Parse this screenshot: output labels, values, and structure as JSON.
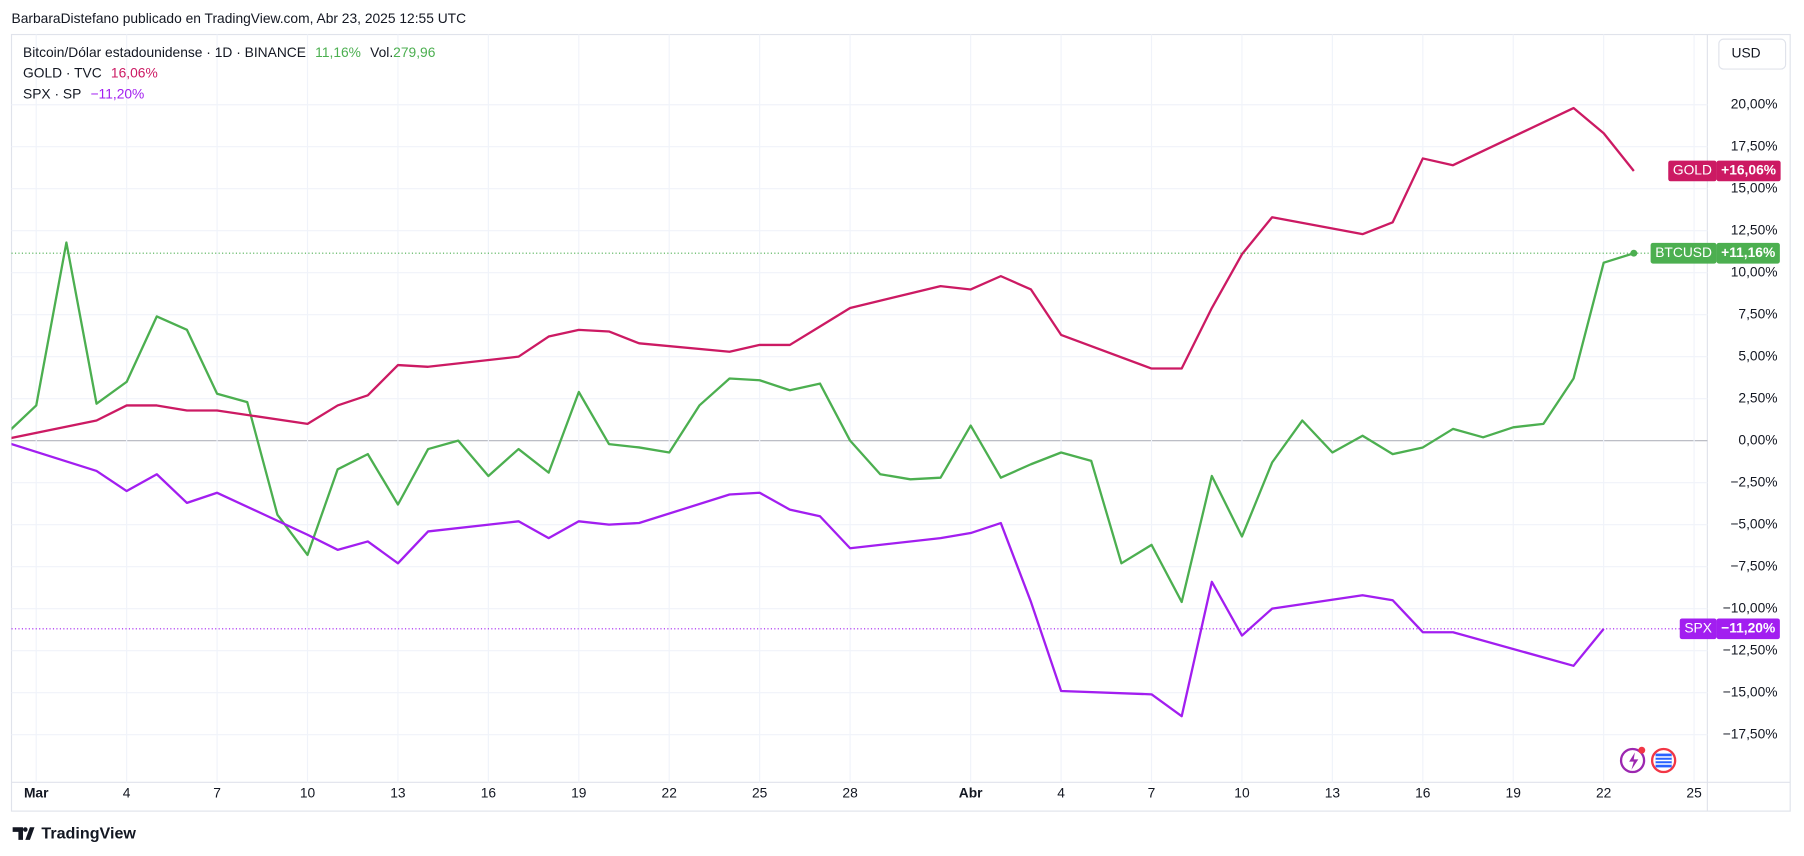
{
  "chart_data": {
    "type": "line",
    "header": "BarbaraDistefano publicado en TradingView.com, Abr 23, 2025 12:55 UTC",
    "footer": "TradingView",
    "currency": "USD",
    "legend": [
      {
        "label": "Bitcoin/Dólar estadounidense · 1D · BINANCE",
        "change": "11,16%",
        "vol_label": "Vol.",
        "vol": "279,96"
      },
      {
        "label": "GOLD · TVC",
        "change": "16,06%"
      },
      {
        "label": "SPX · SP",
        "change": "−11,20%"
      }
    ],
    "series": [
      {
        "name": "BTCUSD",
        "color": "#4caf50",
        "last_label": "+11,16%",
        "x": [
          -1,
          0,
          1,
          2,
          3,
          4,
          5,
          6,
          7,
          8,
          9,
          10,
          11,
          12,
          13,
          14,
          15,
          16,
          17,
          18,
          19,
          20,
          21,
          22,
          23,
          24,
          25,
          26,
          27,
          28,
          29,
          30,
          31,
          32,
          33,
          34,
          35,
          36,
          37,
          38,
          39,
          40,
          41,
          42,
          43,
          44,
          45,
          46,
          47,
          48,
          49,
          50,
          51,
          52,
          53
        ],
        "values": [
          0.4,
          2.1,
          11.8,
          2.2,
          3.5,
          7.4,
          6.6,
          2.8,
          2.3,
          -4.4,
          -6.8,
          -1.7,
          -0.8,
          -3.8,
          -0.5,
          0,
          -2.1,
          -0.5,
          -1.9,
          2.9,
          -0.2,
          -0.4,
          -0.7,
          2.1,
          3.7,
          3.6,
          3.0,
          3.4,
          0,
          -2.0,
          -2.3,
          -2.2,
          0.9,
          -2.2,
          -1.4,
          -0.7,
          -1.2,
          -7.3,
          -6.2,
          -9.6,
          -2.1,
          -5.7,
          -1.3,
          1.2,
          -0.7,
          0.3,
          -0.8,
          -0.4,
          0.7,
          0.2,
          0.8,
          1.0,
          3.7,
          10.6,
          11.16
        ]
      },
      {
        "name": "GOLD",
        "color": "#cc1a63",
        "last_label": "+16,06%",
        "x": [
          -1,
          2,
          3,
          4,
          5,
          6,
          9,
          10,
          11,
          12,
          13,
          16,
          17,
          18,
          19,
          20,
          23,
          24,
          25,
          26,
          27,
          30,
          31,
          32,
          33,
          34,
          37,
          38,
          39,
          40,
          41,
          44,
          45,
          46,
          47,
          51,
          52,
          53
        ],
        "values": [
          0.1,
          1.2,
          2.1,
          2.1,
          1.8,
          1.8,
          1.0,
          2.1,
          2.7,
          4.5,
          4.4,
          5.0,
          6.2,
          6.6,
          6.5,
          5.8,
          5.3,
          5.7,
          5.7,
          6.8,
          7.9,
          9.2,
          9.0,
          9.8,
          9.0,
          6.3,
          4.3,
          4.3,
          7.9,
          11.1,
          13.3,
          12.3,
          13.0,
          16.8,
          16.4,
          19.8,
          18.3,
          16.06
        ]
      },
      {
        "name": "SPX",
        "color": "#a21ef0",
        "last_label": "−11,20%",
        "x": [
          -1,
          2,
          3,
          4,
          5,
          6,
          9,
          10,
          11,
          12,
          13,
          16,
          17,
          18,
          19,
          20,
          23,
          24,
          25,
          26,
          27,
          30,
          31,
          32,
          33,
          34,
          37,
          38,
          39,
          40,
          41,
          44,
          45,
          46,
          47,
          51,
          52
        ],
        "values": [
          -0.1,
          -1.8,
          -3.0,
          -2.0,
          -3.7,
          -3.1,
          -5.6,
          -6.5,
          -6.0,
          -7.3,
          -5.4,
          -4.8,
          -5.8,
          -4.8,
          -5.0,
          -4.9,
          -3.2,
          -3.1,
          -4.1,
          -4.5,
          -6.4,
          -5.8,
          -5.5,
          -4.9,
          -9.6,
          -14.9,
          -15.1,
          -16.4,
          -8.4,
          -11.6,
          -10.0,
          -9.2,
          -9.5,
          -11.4,
          -11.4,
          -13.4,
          -11.2
        ]
      }
    ],
    "xlim": [
      -0.82,
      55.44
    ],
    "xticks": [
      {
        "value": 0,
        "label": "Mar"
      },
      {
        "value": 3,
        "label": "4"
      },
      {
        "value": 6,
        "label": "7"
      },
      {
        "value": 9,
        "label": "10"
      },
      {
        "value": 12,
        "label": "13"
      },
      {
        "value": 15,
        "label": "16"
      },
      {
        "value": 18,
        "label": "19"
      },
      {
        "value": 21,
        "label": "22"
      },
      {
        "value": 24,
        "label": "25"
      },
      {
        "value": 27,
        "label": "28"
      },
      {
        "value": 31,
        "label": "Abr"
      },
      {
        "value": 34,
        "label": "4"
      },
      {
        "value": 37,
        "label": "7"
      },
      {
        "value": 40,
        "label": "10"
      },
      {
        "value": 43,
        "label": "13"
      },
      {
        "value": 46,
        "label": "16"
      },
      {
        "value": 49,
        "label": "19"
      },
      {
        "value": 52,
        "label": "22"
      },
      {
        "value": 55,
        "label": "25"
      }
    ],
    "ylim": [
      -20.34,
      24.18
    ],
    "yticks": [
      {
        "value": -17.5,
        "label": "−17,50%"
      },
      {
        "value": -15,
        "label": "−15,00%"
      },
      {
        "value": -12.5,
        "label": "−12,50%"
      },
      {
        "value": -10,
        "label": "−10,00%"
      },
      {
        "value": -7.5,
        "label": "−7,50%"
      },
      {
        "value": -5,
        "label": "−5,00%"
      },
      {
        "value": -2.5,
        "label": "−2,50%"
      },
      {
        "value": 0,
        "label": "0,00%"
      },
      {
        "value": 2.5,
        "label": "2,50%"
      },
      {
        "value": 5,
        "label": "5,00%"
      },
      {
        "value": 7.5,
        "label": "7,50%"
      },
      {
        "value": 10,
        "label": "10,00%"
      },
      {
        "value": 12.5,
        "label": "12,50%"
      },
      {
        "value": 15,
        "label": "15,00%"
      },
      {
        "value": 17.5,
        "label": "17,50%"
      },
      {
        "value": 20,
        "label": "20,00%"
      }
    ],
    "grid": true
  }
}
